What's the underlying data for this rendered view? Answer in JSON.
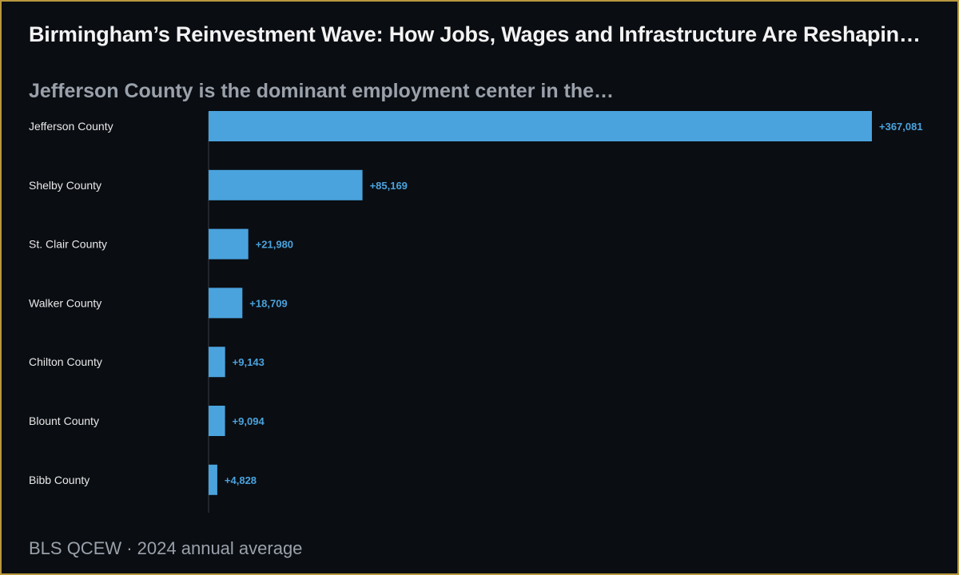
{
  "header": {
    "title": "Birmingham’s Reinvestment Wave: How Jobs, Wages and Infrastructure Are Reshaping …",
    "subtitle": "Jefferson County is the dominant employment center in the…"
  },
  "footer": {
    "source": "BLS QCEW · 2024 annual average"
  },
  "colors": {
    "background": "#0a0d12",
    "border": "#b8983f",
    "bar": "#4aa3dd",
    "axis": "#3a3f47"
  },
  "chart_data": {
    "type": "bar",
    "orientation": "horizontal",
    "categories": [
      "Jefferson County",
      "Shelby County",
      "St. Clair County",
      "Walker County",
      "Chilton County",
      "Blount County",
      "Bibb County"
    ],
    "values": [
      367081,
      85169,
      21980,
      18709,
      9143,
      9094,
      4828
    ],
    "value_labels": [
      "+367,081",
      "+85,169",
      "+21,980",
      "+18,709",
      "+9,143",
      "+9,094",
      "+4,828"
    ],
    "xlim": [
      0,
      367081
    ],
    "grid": false,
    "legend": "none"
  }
}
